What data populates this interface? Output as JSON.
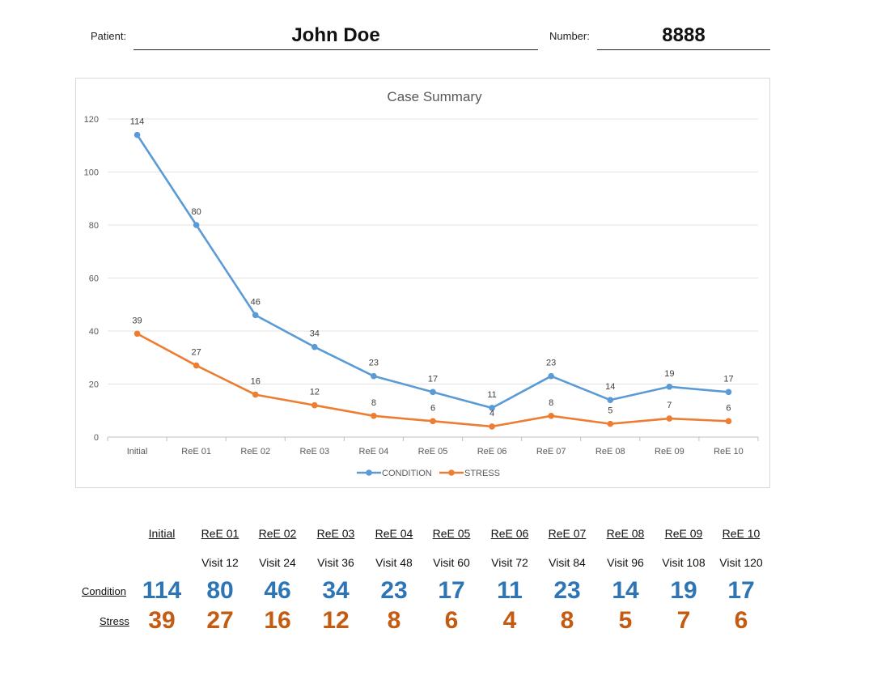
{
  "header": {
    "patient_label": "Patient:",
    "patient_name": "John Doe",
    "number_label": "Number:",
    "number_value": "8888"
  },
  "colors": {
    "condition": "#5b9bd5",
    "stress": "#ed7d31",
    "condition_text": "#2e75b6",
    "stress_text": "#c55a11"
  },
  "chart_data": {
    "type": "line",
    "title": "Case Summary",
    "categories": [
      "Initial",
      "ReE 01",
      "ReE 02",
      "ReE 03",
      "ReE 04",
      "ReE 05",
      "ReE 06",
      "ReE 07",
      "ReE 08",
      "ReE 09",
      "ReE 10"
    ],
    "series": [
      {
        "name": "CONDITION",
        "values": [
          114,
          80,
          46,
          34,
          23,
          17,
          11,
          23,
          14,
          19,
          17
        ]
      },
      {
        "name": "STRESS",
        "values": [
          39,
          27,
          16,
          12,
          8,
          6,
          4,
          8,
          5,
          7,
          6
        ]
      }
    ],
    "ylim": [
      0,
      120
    ],
    "yticks": [
      0,
      20,
      40,
      60,
      80,
      100,
      120
    ],
    "grid": true,
    "legend": "bottom"
  },
  "table": {
    "headers": [
      "Initial",
      "ReE 01",
      "ReE 02",
      "ReE 03",
      "ReE 04",
      "ReE 05",
      "ReE 06",
      "ReE 07",
      "ReE 08",
      "ReE 09",
      "ReE 10"
    ],
    "visits": [
      "",
      "Visit 12",
      "Visit 24",
      "Visit 36",
      "Visit 48",
      "Visit 60",
      "Visit 72",
      "Visit 84",
      "Visit 96",
      "Visit 108",
      "Visit 120"
    ],
    "condition_label": "Condition",
    "stress_label": "Stress",
    "condition": [
      "114",
      "80",
      "46",
      "34",
      "23",
      "17",
      "11",
      "23",
      "14",
      "19",
      "17"
    ],
    "stress": [
      "39",
      "27",
      "16",
      "12",
      "8",
      "6",
      "4",
      "8",
      "5",
      "7",
      "6"
    ]
  }
}
